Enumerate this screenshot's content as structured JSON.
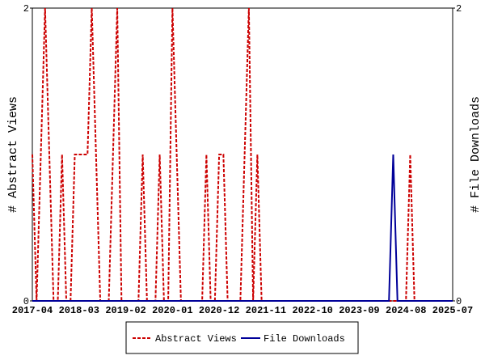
{
  "chart_data": {
    "type": "line",
    "categories": [
      "2017-04",
      null,
      null,
      null,
      null,
      null,
      null,
      null,
      null,
      null,
      null,
      "2018-03",
      null,
      null,
      null,
      null,
      null,
      null,
      null,
      null,
      null,
      null,
      "2019-02",
      null,
      null,
      null,
      null,
      null,
      null,
      null,
      null,
      null,
      null,
      "2020-01",
      null,
      null,
      null,
      null,
      null,
      null,
      null,
      null,
      null,
      null,
      "2020-12",
      null,
      null,
      null,
      null,
      null,
      null,
      null,
      null,
      null,
      null,
      "2021-11",
      null,
      null,
      null,
      null,
      null,
      null,
      null,
      null,
      null,
      null,
      "2022-10",
      null,
      null,
      null,
      null,
      null,
      null,
      null,
      null,
      null,
      null,
      "2023-09",
      null,
      null,
      null,
      null,
      null,
      null,
      null,
      null,
      null,
      null,
      "2024-08",
      null,
      null,
      null,
      null,
      null,
      null,
      null,
      null,
      null,
      null,
      "2025-07"
    ],
    "series": [
      {
        "name": "Abstract Views",
        "color": "#cc0000",
        "dashed": true,
        "values": [
          1,
          0,
          1,
          2,
          1,
          0,
          0,
          1,
          0,
          0,
          1,
          1,
          1,
          1,
          2,
          1,
          0,
          0,
          0,
          1,
          2,
          0,
          0,
          0,
          0,
          0,
          1,
          0,
          0,
          0,
          1,
          0,
          0,
          2,
          1,
          0,
          0,
          0,
          0,
          0,
          0,
          1,
          0,
          0,
          1,
          1,
          0,
          0,
          0,
          0,
          1,
          2,
          0,
          1,
          0,
          0,
          0,
          0,
          0,
          0,
          0,
          0,
          0,
          0,
          0,
          0,
          0,
          0,
          0,
          0,
          0,
          0,
          0,
          0,
          0,
          0,
          0,
          0,
          0,
          0,
          0,
          0,
          0,
          0,
          0,
          0,
          0,
          0,
          0,
          1,
          0,
          0,
          0,
          0,
          0,
          0,
          0,
          0,
          0,
          0
        ]
      },
      {
        "name": "File Downloads",
        "color": "#000099",
        "dashed": false,
        "axis": "y2",
        "values": [
          0,
          0,
          0,
          0,
          0,
          0,
          0,
          0,
          0,
          0,
          0,
          0,
          0,
          0,
          0,
          0,
          0,
          0,
          0,
          0,
          0,
          0,
          0,
          0,
          0,
          0,
          0,
          0,
          0,
          0,
          0,
          0,
          0,
          0,
          0,
          0,
          0,
          0,
          0,
          0,
          0,
          0,
          0,
          0,
          0,
          0,
          0,
          0,
          0,
          0,
          0,
          0,
          0,
          0,
          0,
          0,
          0,
          0,
          0,
          0,
          0,
          0,
          0,
          0,
          0,
          0,
          0,
          0,
          0,
          0,
          0,
          0,
          0,
          0,
          0,
          0,
          0,
          0,
          0,
          0,
          0,
          0,
          0,
          0,
          0,
          1,
          0,
          0,
          0,
          0,
          0,
          0,
          0,
          0,
          0,
          0,
          0,
          0,
          0,
          0
        ]
      }
    ],
    "y_label": "# Abstract Views",
    "y2_label": "# File Downloads",
    "ylim": [
      0,
      2
    ],
    "yticks": [
      0,
      2
    ],
    "y2lim": [
      0,
      2
    ],
    "y2ticks": [
      0,
      2
    ],
    "legend": "bottom"
  }
}
